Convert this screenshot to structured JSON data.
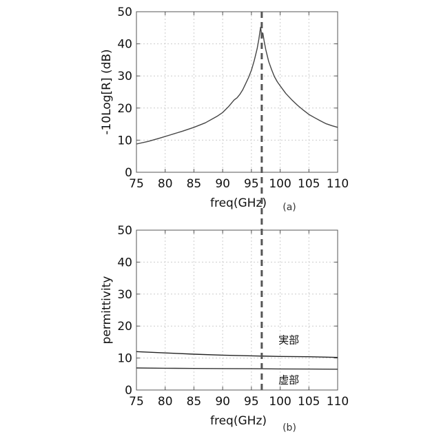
{
  "chart_data": [
    {
      "type": "line",
      "panel_label": "(a)",
      "xlabel": "freq(GHz)",
      "ylabel": "-10Log[R] (dB)",
      "xlim": [
        75,
        110
      ],
      "ylim": [
        0,
        50
      ],
      "xticks": [
        75,
        80,
        85,
        90,
        95,
        100,
        105,
        110
      ],
      "yticks": [
        0,
        10,
        20,
        30,
        40,
        50
      ],
      "grid": true,
      "marker_line_x": 96.8,
      "series": [
        {
          "color": "#444444",
          "x": [
            75,
            77,
            79,
            81,
            83,
            85,
            87,
            89,
            90,
            91,
            92,
            92.5,
            93,
            93.5,
            94,
            94.5,
            95,
            95.5,
            96,
            96.3,
            96.6,
            96.8,
            97.0,
            97.2,
            97.5,
            98,
            98.5,
            99,
            99.5,
            100,
            101,
            102,
            103,
            104,
            105,
            106,
            107,
            108,
            109,
            110
          ],
          "values": [
            8.8,
            9.6,
            10.6,
            11.7,
            12.8,
            14.0,
            15.4,
            17.4,
            18.6,
            20.4,
            22.5,
            23.2,
            24.3,
            25.7,
            27.6,
            29.5,
            31.8,
            34.8,
            38.5,
            41.5,
            45.2,
            42.5,
            43.3,
            41.0,
            38.2,
            34.5,
            32.0,
            29.8,
            28.2,
            26.9,
            24.5,
            22.6,
            20.9,
            19.4,
            18.0,
            17.0,
            16.0,
            15.1,
            14.5,
            14.0
          ]
        }
      ]
    },
    {
      "type": "line",
      "panel_label": "(b)",
      "xlabel": "freq(GHz)",
      "ylabel": "permittivity",
      "xlim": [
        75,
        110
      ],
      "ylim": [
        0,
        50
      ],
      "xticks": [
        75,
        80,
        85,
        90,
        95,
        100,
        105,
        110
      ],
      "yticks": [
        0,
        10,
        20,
        30,
        40,
        50
      ],
      "grid": true,
      "marker_line_x": 96.8,
      "annotations": [
        {
          "text": "実部",
          "x": 101.5,
          "y": 14.5
        },
        {
          "text": "虚部",
          "x": 101.5,
          "y": 2.0
        }
      ],
      "series": [
        {
          "color": "#222222",
          "x": [
            75,
            80,
            85,
            90,
            95,
            100,
            105,
            110
          ],
          "values": [
            12.0,
            11.6,
            11.2,
            10.9,
            10.7,
            10.5,
            10.4,
            10.2
          ]
        },
        {
          "color": "#333333",
          "x": [
            75,
            80,
            85,
            90,
            95,
            100,
            105,
            110
          ],
          "values": [
            6.9,
            6.8,
            6.75,
            6.7,
            6.65,
            6.6,
            6.55,
            6.5
          ]
        }
      ]
    }
  ]
}
